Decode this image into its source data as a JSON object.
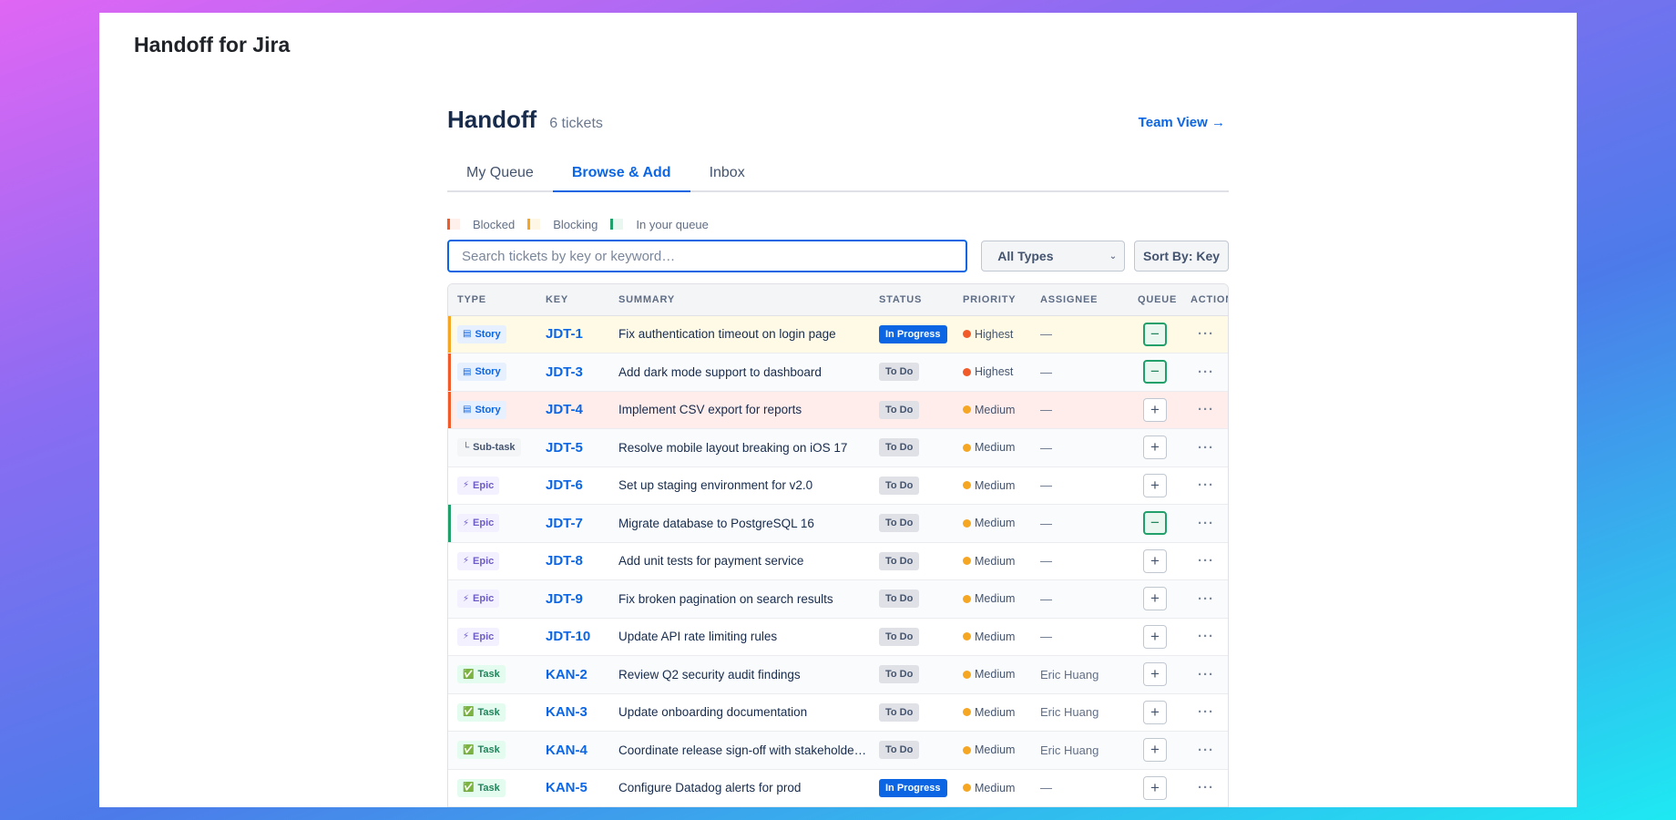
{
  "app": {
    "title": "Handoff for Jira"
  },
  "header": {
    "title": "Handoff",
    "ticket_count": "6 tickets",
    "team_view_link": "Team View →"
  },
  "tabs": [
    {
      "label": "My Queue",
      "active": false
    },
    {
      "label": "Browse & Add",
      "active": true
    },
    {
      "label": "Inbox",
      "active": false
    }
  ],
  "legend": [
    {
      "label": "Blocked",
      "color": "#f15b2a"
    },
    {
      "label": "Blocking",
      "color": "#f5a623"
    },
    {
      "label": "In your queue",
      "color": "#22a06b"
    }
  ],
  "search": {
    "placeholder": "Search tickets by key or keyword…",
    "value": ""
  },
  "filters": {
    "type_select": "All Types",
    "sort_button": "Sort By: Key"
  },
  "table": {
    "columns": [
      "TYPE",
      "KEY",
      "SUMMARY",
      "STATUS",
      "PRIORITY",
      "ASSIGNEE",
      "QUEUE",
      "ACTIONS"
    ],
    "rows": [
      {
        "type": "Story",
        "type_icon": "story-icon",
        "key": "JDT-1",
        "summary": "Fix authentication timeout on login page",
        "status": "In Progress",
        "priority": "Highest",
        "assignee": "—",
        "queue": "−",
        "in_queue": true,
        "highlight": "blocking"
      },
      {
        "type": "Story",
        "type_icon": "story-icon",
        "key": "JDT-3",
        "summary": "Add dark mode support to dashboard",
        "status": "To Do",
        "priority": "Highest",
        "assignee": "—",
        "queue": "−",
        "in_queue": true,
        "highlight": "blocked"
      },
      {
        "type": "Story",
        "type_icon": "story-icon",
        "key": "JDT-4",
        "summary": "Implement CSV export for reports",
        "status": "To Do",
        "priority": "Medium",
        "assignee": "—",
        "queue": "+",
        "in_queue": false,
        "highlight": "blocked"
      },
      {
        "type": "Sub-task",
        "type_icon": "subtask-icon",
        "key": "JDT-5",
        "summary": "Resolve mobile layout breaking on iOS 17",
        "status": "To Do",
        "priority": "Medium",
        "assignee": "—",
        "queue": "+",
        "in_queue": false,
        "highlight": ""
      },
      {
        "type": "Epic",
        "type_icon": "epic-icon",
        "key": "JDT-6",
        "summary": "Set up staging environment for v2.0",
        "status": "To Do",
        "priority": "Medium",
        "assignee": "—",
        "queue": "+",
        "in_queue": false,
        "highlight": ""
      },
      {
        "type": "Epic",
        "type_icon": "epic-icon",
        "key": "JDT-7",
        "summary": "Migrate database to PostgreSQL 16",
        "status": "To Do",
        "priority": "Medium",
        "assignee": "—",
        "queue": "−",
        "in_queue": true,
        "highlight": "queue"
      },
      {
        "type": "Epic",
        "type_icon": "epic-icon",
        "key": "JDT-8",
        "summary": "Add unit tests for payment service",
        "status": "To Do",
        "priority": "Medium",
        "assignee": "—",
        "queue": "+",
        "in_queue": false,
        "highlight": ""
      },
      {
        "type": "Epic",
        "type_icon": "epic-icon",
        "key": "JDT-9",
        "summary": "Fix broken pagination on search results",
        "status": "To Do",
        "priority": "Medium",
        "assignee": "—",
        "queue": "+",
        "in_queue": false,
        "highlight": ""
      },
      {
        "type": "Epic",
        "type_icon": "epic-icon",
        "key": "JDT-10",
        "summary": "Update API rate limiting rules",
        "status": "To Do",
        "priority": "Medium",
        "assignee": "—",
        "queue": "+",
        "in_queue": false,
        "highlight": ""
      },
      {
        "type": "Task",
        "type_icon": "task-icon",
        "key": "KAN-2",
        "summary": "Review Q2 security audit findings",
        "status": "To Do",
        "priority": "Medium",
        "assignee": "Eric Huang",
        "queue": "+",
        "in_queue": false,
        "highlight": ""
      },
      {
        "type": "Task",
        "type_icon": "task-icon",
        "key": "KAN-3",
        "summary": "Update onboarding documentation",
        "status": "To Do",
        "priority": "Medium",
        "assignee": "Eric Huang",
        "queue": "+",
        "in_queue": false,
        "highlight": ""
      },
      {
        "type": "Task",
        "type_icon": "task-icon",
        "key": "KAN-4",
        "summary": "Coordinate release sign-off with stakeholde…",
        "status": "To Do",
        "priority": "Medium",
        "assignee": "Eric Huang",
        "queue": "+",
        "in_queue": false,
        "highlight": ""
      },
      {
        "type": "Task",
        "type_icon": "task-icon",
        "key": "KAN-5",
        "summary": "Configure Datadog alerts for prod",
        "status": "In Progress",
        "priority": "Medium",
        "assignee": "—",
        "queue": "+",
        "in_queue": false,
        "highlight": ""
      }
    ]
  },
  "colors": {
    "accent": "#0c66e4",
    "priority_highest": "#f15b2a",
    "priority_medium": "#f5a623"
  }
}
